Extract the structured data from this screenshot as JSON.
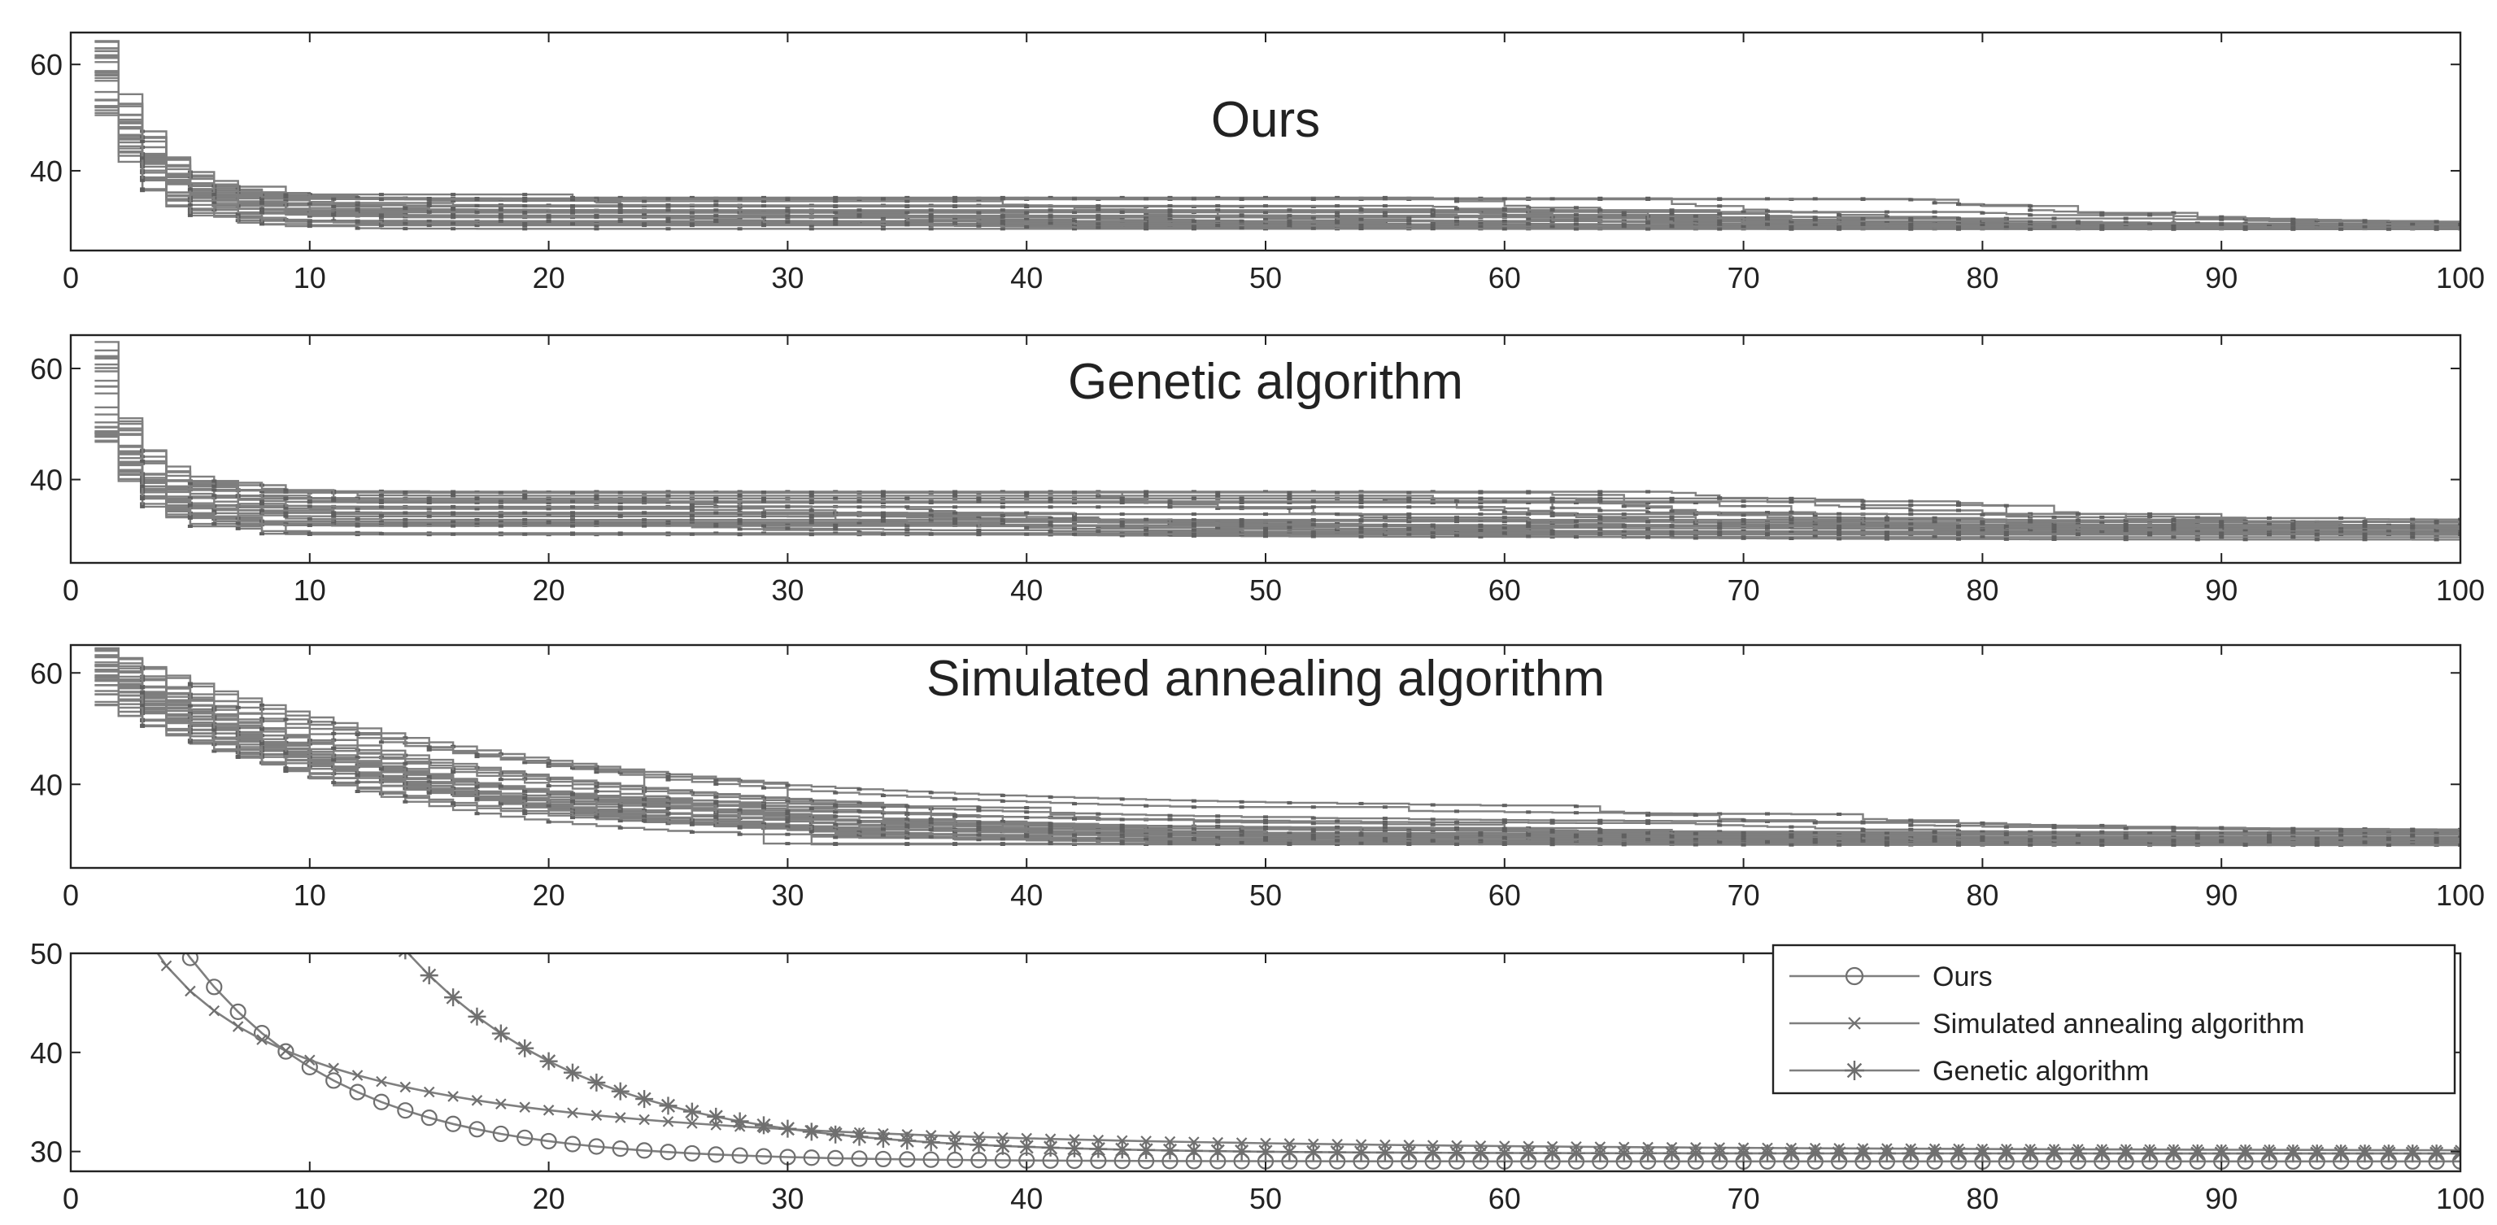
{
  "chart_data": [
    {
      "type": "line",
      "title": "Ours",
      "xlim": [
        0,
        100
      ],
      "ylim": [
        25,
        66
      ],
      "xticks": [
        0,
        10,
        20,
        30,
        40,
        50,
        60,
        70,
        80,
        90,
        100
      ],
      "yticks": [
        40,
        60
      ],
      "ensemble": {
        "runs": 30,
        "start": [
          50,
          66
        ],
        "plateau": [
          29,
          35
        ],
        "end": [
          29,
          30
        ],
        "tau": 2.0,
        "spread": "narrow"
      },
      "grid": false,
      "color": "#7f7f7f"
    },
    {
      "type": "line",
      "title": "Genetic algorithm",
      "xlim": [
        0,
        100
      ],
      "ylim": [
        25,
        66
      ],
      "xticks": [
        0,
        10,
        20,
        30,
        40,
        50,
        60,
        70,
        80,
        90,
        100
      ],
      "yticks": [
        40,
        60
      ],
      "ensemble": {
        "runs": 30,
        "start": [
          46,
          66
        ],
        "plateau": [
          30,
          38
        ],
        "end": [
          29,
          33
        ],
        "tau": 1.5,
        "spread": "medium"
      },
      "grid": false,
      "color": "#7f7f7f"
    },
    {
      "type": "line",
      "title": "Simulated annealing algorithm",
      "xlim": [
        0,
        100
      ],
      "ylim": [
        25,
        65
      ],
      "xticks": [
        0,
        10,
        20,
        30,
        40,
        50,
        60,
        70,
        80,
        90,
        100
      ],
      "yticks": [
        40,
        60
      ],
      "ensemble": {
        "runs": 30,
        "start": [
          54,
          65
        ],
        "plateau": [
          29,
          37
        ],
        "end": [
          29,
          32
        ],
        "tau": 12,
        "spread": "wide"
      },
      "grid": false,
      "color": "#7f7f7f"
    },
    {
      "type": "line",
      "title": "",
      "xlim": [
        0,
        100
      ],
      "ylim": [
        28,
        50
      ],
      "xticks": [
        0,
        10,
        20,
        30,
        40,
        50,
        60,
        70,
        80,
        90,
        100
      ],
      "yticks": [
        30,
        40,
        50
      ],
      "legend_position": "top-right",
      "series": [
        {
          "name": "Ours",
          "marker": "circle",
          "a": 29,
          "b": 38,
          "tau": 6.5,
          "p": 1.0,
          "x_start": 1
        },
        {
          "name": "Simulated annealing algorithm",
          "marker": "x",
          "a": 30,
          "b": 44,
          "tau": 4.0,
          "p": 0.55,
          "x_start": 1
        },
        {
          "name": "Genetic algorithm",
          "marker": "star",
          "a": 29.8,
          "b": 20.5,
          "tau": 7.6,
          "p": 1.0,
          "x_start": 14
        }
      ],
      "color": "#7f7f7f"
    }
  ]
}
